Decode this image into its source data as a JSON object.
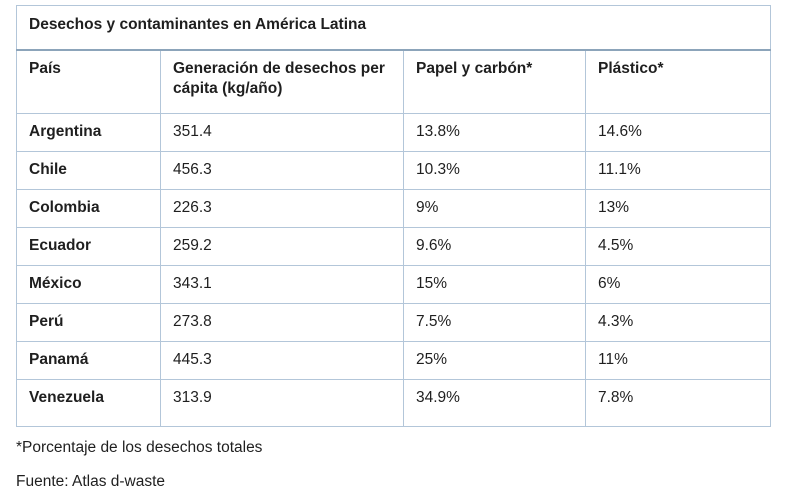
{
  "table": {
    "title": "Desechos y contaminantes en América Latina",
    "columns": [
      "País",
      "Generación de desechos per cápita (kg/año)",
      "Papel y carbón*",
      "Plástico*"
    ],
    "rows": [
      {
        "country": "Argentina",
        "generation": "351.4",
        "paper": "13.8%",
        "plastic": "14.6%"
      },
      {
        "country": "Chile",
        "generation": "456.3",
        "paper": "10.3%",
        "plastic": "11.1%"
      },
      {
        "country": "Colombia",
        "generation": "226.3",
        "paper": "9%",
        "plastic": "13%"
      },
      {
        "country": "Ecuador",
        "generation": "259.2",
        "paper": "9.6%",
        "plastic": "4.5%"
      },
      {
        "country": "México",
        "generation": "343.1",
        "paper": "15%",
        "plastic": "6%"
      },
      {
        "country": "Perú",
        "generation": "273.8",
        "paper": "7.5%",
        "plastic": "4.3%"
      },
      {
        "country": "Panamá",
        "generation": "445.3",
        "paper": "25%",
        "plastic": "11%"
      },
      {
        "country": "Venezuela",
        "generation": "313.9",
        "paper": "34.9%",
        "plastic": "7.8%"
      }
    ],
    "colors": {
      "border": "#b3c6d9",
      "title_divider": "#8ca4ba",
      "text": "#1f1f1f",
      "background": "#ffffff"
    }
  },
  "footnotes": {
    "asterisk": "*Porcentaje de los desechos totales",
    "source": "Fuente: Atlas d-waste"
  }
}
